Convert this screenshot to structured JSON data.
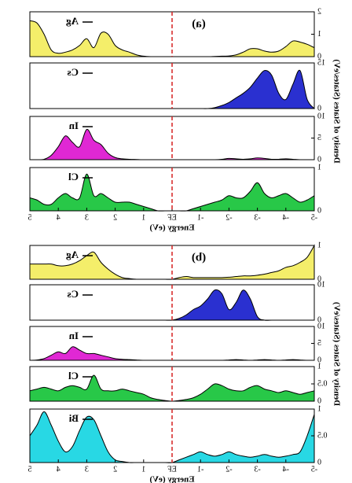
{
  "chart_data": [
    {
      "type": "area",
      "title": "(a)",
      "x": [
        -5,
        -4.75,
        -4.5,
        -4.25,
        -4,
        -3.75,
        -3.5,
        -3.25,
        -3,
        -2.75,
        -2.5,
        -2.25,
        -2,
        -1.75,
        -1.5,
        -1.25,
        -1,
        -0.75,
        -0.5,
        -0.25,
        0,
        0.25,
        0.5,
        0.75,
        1,
        1.25,
        1.5,
        1.75,
        2,
        2.25,
        2.5,
        2.75,
        3,
        3.25,
        3.5,
        3.75,
        4,
        4.25,
        4.5,
        4.75,
        5
      ],
      "xlim": [
        -5,
        5
      ],
      "ylim": [
        0,
        2
      ],
      "yticks": [
        0,
        1,
        2
      ],
      "series": [
        {
          "name": "Ag",
          "color": "#f4ee6a",
          "values": [
            0.4,
            0.55,
            0.65,
            0.7,
            0.45,
            0.25,
            0.2,
            0.25,
            0.35,
            0.35,
            0.2,
            0.08,
            0.03,
            0.02,
            0.01,
            0,
            0,
            0,
            0,
            0,
            0,
            0,
            0,
            0,
            0.02,
            0.08,
            0.2,
            0.3,
            0.5,
            1.0,
            1.05,
            0.4,
            0.8,
            0.5,
            0.3,
            0.2,
            0.15,
            0.3,
            1.0,
            1.5,
            1.6
          ]
        }
      ]
    },
    {
      "type": "area",
      "x": [
        -5,
        -4.75,
        -4.5,
        -4.25,
        -4,
        -3.75,
        -3.5,
        -3.25,
        -3,
        -2.75,
        -2.5,
        -2.25,
        -2,
        -1.75,
        -1.5,
        -1.25,
        -1,
        -0.75,
        -0.5,
        -0.25,
        0,
        0.25,
        0.5,
        0.75,
        1,
        1.25,
        1.5,
        1.75,
        2,
        2.25,
        2.5,
        2.75,
        3,
        3.25,
        3.5,
        3.75,
        4,
        4.25,
        4.5,
        4.75,
        5
      ],
      "xlim": [
        -5,
        5
      ],
      "ylim": [
        0,
        15
      ],
      "yticks": [
        0,
        15
      ],
      "series": [
        {
          "name": "Cs",
          "color": "#2a30d0",
          "values": [
            0,
            3,
            12.5,
            8,
            3,
            5,
            11,
            12.5,
            10,
            7,
            5,
            3.5,
            2,
            1,
            0.3,
            0,
            0,
            0,
            0,
            0,
            0,
            0,
            0,
            0,
            0,
            0,
            0,
            0,
            0,
            0,
            0,
            0,
            0,
            0,
            0,
            0,
            0,
            0,
            0,
            0,
            0
          ]
        }
      ]
    },
    {
      "type": "area",
      "x": [
        -5,
        -4.75,
        -4.5,
        -4.25,
        -4,
        -3.75,
        -3.5,
        -3.25,
        -3,
        -2.75,
        -2.5,
        -2.25,
        -2,
        -1.75,
        -1.5,
        -1.25,
        -1,
        -0.75,
        -0.5,
        -0.25,
        0,
        0.25,
        0.5,
        0.75,
        1,
        1.25,
        1.5,
        1.75,
        2,
        2.25,
        2.5,
        2.75,
        3,
        3.25,
        3.5,
        3.75,
        4,
        4.25,
        4.5,
        4.75,
        5
      ],
      "xlim": [
        -5,
        5
      ],
      "ylim": [
        0,
        10
      ],
      "yticks": [
        0,
        5,
        10
      ],
      "series": [
        {
          "name": "In",
          "color": "#e028d4",
          "values": [
            0,
            0,
            0,
            0.1,
            0.2,
            0.1,
            0.1,
            0.3,
            0.4,
            0.2,
            0.1,
            0.2,
            0.3,
            0.1,
            0,
            0,
            0,
            0,
            0,
            0,
            0,
            0,
            0,
            0,
            0,
            0.05,
            0.1,
            0.2,
            0.5,
            1.5,
            3.5,
            4.5,
            7,
            3,
            4,
            5.5,
            3,
            1,
            0.1,
            0,
            0
          ]
        }
      ]
    },
    {
      "type": "area",
      "x": [
        -5,
        -4.75,
        -4.5,
        -4.25,
        -4,
        -3.75,
        -3.5,
        -3.25,
        -3,
        -2.75,
        -2.5,
        -2.25,
        -2,
        -1.75,
        -1.5,
        -1.25,
        -1,
        -0.75,
        -0.5,
        -0.25,
        0,
        0.25,
        0.5,
        0.75,
        1,
        1.25,
        1.5,
        1.75,
        2,
        2.25,
        2.5,
        2.75,
        3,
        3.25,
        3.5,
        3.75,
        4,
        4.25,
        4.5,
        4.75,
        5
      ],
      "xlim": [
        -5,
        5
      ],
      "ylim": [
        0,
        1
      ],
      "yticks": [
        0,
        1
      ],
      "xticks": [
        -5,
        -4,
        -3,
        -2,
        -1,
        {
          "value": 0,
          "label": "EF"
        },
        1,
        2,
        3,
        4,
        5
      ],
      "xlabel": "Energy (eV)",
      "ylabel": "Density of States (States/eV)",
      "series": [
        {
          "name": "Cl",
          "color": "#28c848",
          "values": [
            0.35,
            0.25,
            0.2,
            0.3,
            0.4,
            0.35,
            0.3,
            0.4,
            0.65,
            0.45,
            0.3,
            0.3,
            0.35,
            0.25,
            0.2,
            0.15,
            0.1,
            0.05,
            0,
            0,
            0,
            0,
            0,
            0.05,
            0.1,
            0.15,
            0.2,
            0.2,
            0.2,
            0.3,
            0.4,
            0.35,
            0.85,
            0.3,
            0.3,
            0.4,
            0.3,
            0.15,
            0.15,
            0.25,
            0.3
          ]
        }
      ]
    },
    {
      "type": "area",
      "title": "(b)",
      "x": [
        -5,
        -4.75,
        -4.5,
        -4.25,
        -4,
        -3.75,
        -3.5,
        -3.25,
        -3,
        -2.75,
        -2.5,
        -2.25,
        -2,
        -1.75,
        -1.5,
        -1.25,
        -1,
        -0.75,
        -0.5,
        -0.25,
        0,
        0.25,
        0.5,
        0.75,
        1,
        1.25,
        1.5,
        1.75,
        2,
        2.25,
        2.5,
        2.75,
        3,
        3.25,
        3.5,
        3.75,
        4,
        4.25,
        4.5,
        4.75,
        5
      ],
      "xlim": [
        -5,
        5
      ],
      "ylim": [
        0,
        1
      ],
      "yticks": [
        0,
        1
      ],
      "series": [
        {
          "name": "Ag",
          "color": "#f4ee6a",
          "values": [
            1.0,
            0.65,
            0.5,
            0.4,
            0.35,
            0.25,
            0.2,
            0.15,
            0.12,
            0.1,
            0.1,
            0.08,
            0.06,
            0.05,
            0.05,
            0.05,
            0.05,
            0.05,
            0.08,
            0.05,
            0,
            0,
            0,
            0,
            0,
            0,
            0.02,
            0.05,
            0.15,
            0.3,
            0.5,
            0.8,
            0.7,
            0.55,
            0.45,
            0.4,
            0.4,
            0.45,
            0.45,
            0.45,
            0.45
          ]
        }
      ]
    },
    {
      "type": "area",
      "x": [
        -5,
        -4.75,
        -4.5,
        -4.25,
        -4,
        -3.75,
        -3.5,
        -3.25,
        -3,
        -2.75,
        -2.5,
        -2.25,
        -2,
        -1.75,
        -1.5,
        -1.25,
        -1,
        -0.75,
        -0.5,
        -0.25,
        0,
        0.25,
        0.5,
        0.75,
        1,
        1.25,
        1.5,
        1.75,
        2,
        2.25,
        2.5,
        2.75,
        3,
        3.25,
        3.5,
        3.75,
        4,
        4.25,
        4.5,
        4.75,
        5
      ],
      "xlim": [
        -5,
        5
      ],
      "ylim": [
        0,
        10
      ],
      "yticks": [
        0,
        10
      ],
      "series": [
        {
          "name": "Cs",
          "color": "#2a30d0",
          "values": [
            0,
            0,
            0,
            0,
            0,
            0,
            0,
            0,
            1,
            6,
            8.5,
            5,
            3,
            7.5,
            8.5,
            6,
            4,
            3,
            1.5,
            0.5,
            0,
            0,
            0,
            0,
            0,
            0,
            0,
            0,
            0,
            0,
            0,
            0,
            0,
            0,
            0,
            0,
            0,
            0,
            0,
            0,
            0
          ]
        }
      ]
    },
    {
      "type": "area",
      "x": [
        -5,
        -4.75,
        -4.5,
        -4.25,
        -4,
        -3.75,
        -3.5,
        -3.25,
        -3,
        -2.75,
        -2.5,
        -2.25,
        -2,
        -1.75,
        -1.5,
        -1.25,
        -1,
        -0.75,
        -0.5,
        -0.25,
        0,
        0.25,
        0.5,
        0.75,
        1,
        1.25,
        1.5,
        1.75,
        2,
        2.25,
        2.5,
        2.75,
        3,
        3.25,
        3.5,
        3.75,
        4,
        4.25,
        4.5,
        4.75,
        5
      ],
      "xlim": [
        -5,
        5
      ],
      "ylim": [
        0,
        10
      ],
      "yticks": [
        0,
        5,
        10
      ],
      "series": [
        {
          "name": "In",
          "color": "#e028d4",
          "values": [
            0,
            0,
            0.1,
            0.2,
            0.1,
            0,
            0.1,
            0.2,
            0.1,
            0,
            0.1,
            0.2,
            0.1,
            0,
            0,
            0,
            0,
            0,
            0,
            0,
            0,
            0,
            0,
            0,
            0,
            0.1,
            0.2,
            0.3,
            0.5,
            1,
            1.5,
            2,
            2,
            3,
            4,
            2,
            2.5,
            1.5,
            0.5,
            0.1,
            0
          ]
        }
      ]
    },
    {
      "type": "area",
      "x": [
        -5,
        -4.75,
        -4.5,
        -4.25,
        -4,
        -3.75,
        -3.5,
        -3.25,
        -3,
        -2.75,
        -2.5,
        -2.25,
        -2,
        -1.75,
        -1.5,
        -1.25,
        -1,
        -0.75,
        -0.5,
        -0.25,
        0,
        0.25,
        0.5,
        0.75,
        1,
        1.25,
        1.5,
        1.75,
        2,
        2.25,
        2.5,
        2.75,
        3,
        3.25,
        3.5,
        3.75,
        4,
        4.25,
        4.5,
        4.75,
        5
      ],
      "xlim": [
        -5,
        5
      ],
      "ylim": [
        0,
        1
      ],
      "yticks": [
        0,
        0.5,
        1
      ],
      "series": [
        {
          "name": "Cl",
          "color": "#28c848",
          "values": [
            0.3,
            0.25,
            0.2,
            0.25,
            0.3,
            0.25,
            0.3,
            0.35,
            0.45,
            0.4,
            0.3,
            0.3,
            0.35,
            0.45,
            0.5,
            0.35,
            0.2,
            0.1,
            0.05,
            0.02,
            0,
            0.02,
            0.05,
            0.1,
            0.2,
            0.25,
            0.3,
            0.35,
            0.3,
            0.3,
            0.35,
            0.75,
            0.35,
            0.4,
            0.45,
            0.4,
            0.3,
            0.35,
            0.4,
            0.35,
            0.3
          ]
        }
      ]
    },
    {
      "type": "area",
      "x": [
        -5,
        -4.75,
        -4.5,
        -4.25,
        -4,
        -3.75,
        -3.5,
        -3.25,
        -3,
        -2.75,
        -2.5,
        -2.25,
        -2,
        -1.75,
        -1.5,
        -1.25,
        -1,
        -0.75,
        -0.5,
        -0.25,
        0,
        0.25,
        0.5,
        0.75,
        1,
        1.25,
        1.5,
        1.75,
        2,
        2.25,
        2.5,
        2.75,
        3,
        3.25,
        3.5,
        3.75,
        4,
        4.25,
        4.5,
        4.75,
        5
      ],
      "xlim": [
        -5,
        5
      ],
      "ylim": [
        0,
        1
      ],
      "yticks": [
        0,
        0.5,
        1
      ],
      "xticks": [
        -5,
        -4,
        -3,
        -2,
        -1,
        {
          "value": 0,
          "label": "EF"
        },
        1,
        2,
        3,
        4,
        5
      ],
      "xlabel": "Energy (eV)",
      "ylabel": "Density of States (States/eV)",
      "series": [
        {
          "name": "Bi",
          "color": "#28d8e4",
          "values": [
            0.9,
            0.5,
            0.2,
            0.15,
            0.12,
            0.1,
            0.12,
            0.15,
            0.12,
            0.1,
            0.12,
            0.15,
            0.2,
            0.15,
            0.12,
            0.15,
            0.2,
            0.15,
            0.1,
            0.05,
            0,
            0,
            0,
            0,
            0,
            0,
            0,
            0.02,
            0.05,
            0.2,
            0.5,
            0.8,
            0.85,
            0.6,
            0.3,
            0.2,
            0.4,
            0.7,
            0.95,
            0.7,
            0.5
          ]
        }
      ]
    }
  ]
}
